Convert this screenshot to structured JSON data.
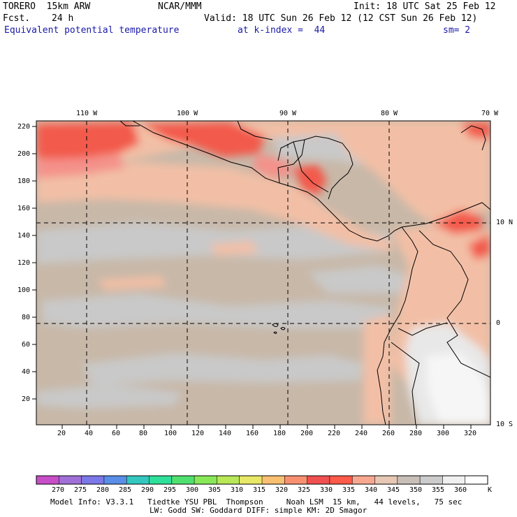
{
  "header": {
    "model": "TORERO  15km ARW",
    "center": "NCAR/MMM",
    "init": "Init: 18 UTC Sat 25 Feb 12",
    "fcst_label": "Fcst.",
    "fcst_value": "24 h",
    "valid": "Valid: 18 UTC Sun 26 Feb 12 (12 CST Sun 26 Feb 12)",
    "field": "Equivalent potential temperature",
    "level": "at k-index =  44",
    "smoothing": "sm= 2"
  },
  "map": {
    "longitude_labels": [
      "110 W",
      "100 W",
      "90 W",
      "80 W",
      "70 W"
    ],
    "latitude_labels": [
      "10 N",
      "0",
      "10 S"
    ],
    "y_ticks": [
      "220",
      "200",
      "180",
      "160",
      "140",
      "120",
      "100",
      "80",
      "60",
      "40",
      "20"
    ],
    "x_ticks": [
      "20",
      "40",
      "60",
      "80",
      "100",
      "120",
      "140",
      "160",
      "180",
      "200",
      "220",
      "240",
      "260",
      "280",
      "300",
      "320"
    ]
  },
  "colorbar": {
    "labels": [
      "270",
      "275",
      "280",
      "285",
      "290",
      "295",
      "300",
      "305",
      "310",
      "315",
      "320",
      "325",
      "330",
      "335",
      "340",
      "345",
      "350",
      "355",
      "360"
    ],
    "unit": "K",
    "colors": [
      "#c84ec8",
      "#a070d8",
      "#7c78e8",
      "#5a8ee8",
      "#33c7c0",
      "#2ee09a",
      "#50e070",
      "#88e858",
      "#b8e858",
      "#e8e868",
      "#f8c070",
      "#f89070",
      "#f05050",
      "#ff5a4a",
      "#f8a890",
      "#e6c8b4",
      "#c8c0b8",
      "#cccccc",
      "#f0f0f0",
      "#ffffff"
    ]
  },
  "footer": {
    "line1": "Model Info: V3.3.1   Tiedtke YSU PBL  Thompson     Noah LSM  15 km,   44 levels,   75 sec",
    "line2": "LW: Godd SW: Goddard DIFF: simple KM: 2D Smagor"
  }
}
